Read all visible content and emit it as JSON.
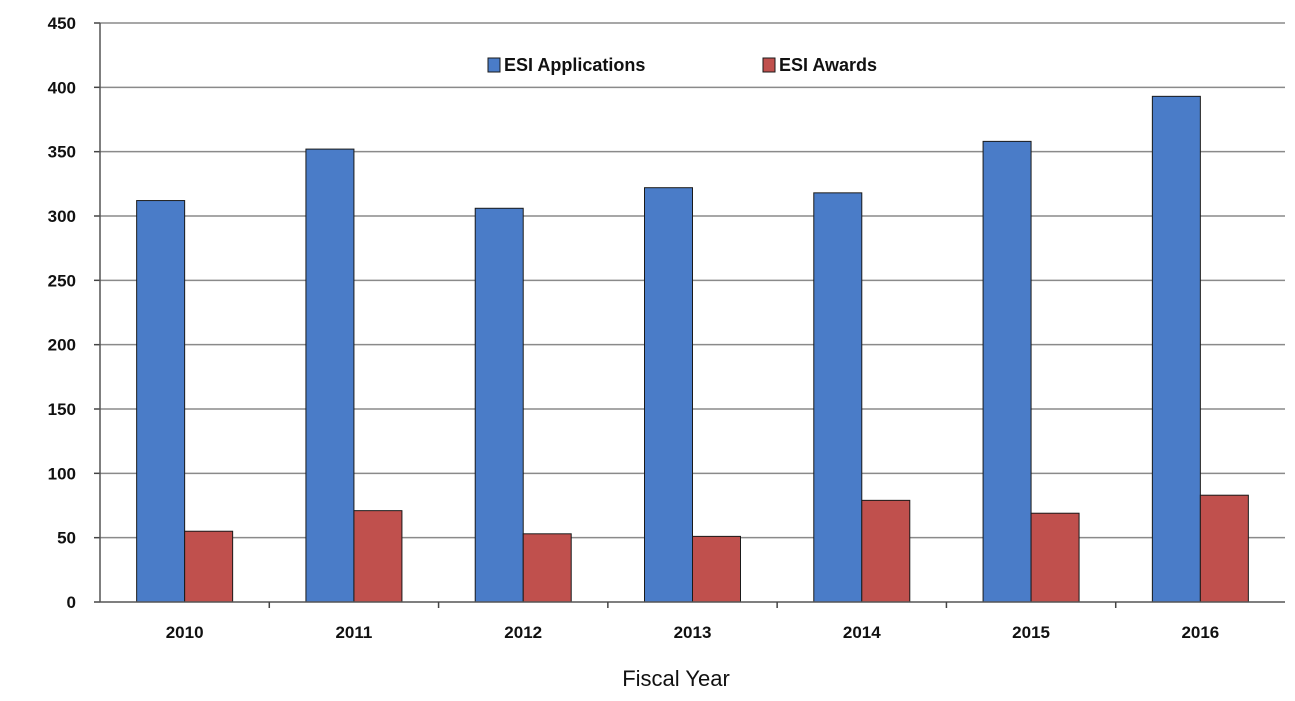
{
  "chart_data": {
    "type": "bar",
    "categories": [
      "2010",
      "2011",
      "2012",
      "2013",
      "2014",
      "2015",
      "2016"
    ],
    "series": [
      {
        "name": "ESI Applications",
        "color": "#4a7cc8",
        "values": [
          312,
          352,
          306,
          322,
          318,
          358,
          393
        ]
      },
      {
        "name": "ESI Awards",
        "color": "#c0504d",
        "values": [
          55,
          71,
          53,
          51,
          79,
          69,
          83
        ]
      }
    ],
    "xlabel": "Fiscal Year",
    "ylabel": "",
    "ylim": [
      0,
      450
    ],
    "yticks": [
      0,
      50,
      100,
      150,
      200,
      250,
      300,
      350,
      400,
      450
    ],
    "grid": true,
    "legend_position": "top-center"
  }
}
